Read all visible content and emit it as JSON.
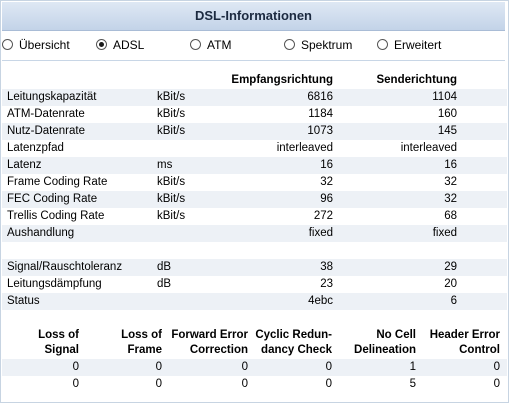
{
  "header": {
    "title": "DSL-Informationen"
  },
  "tabs": [
    {
      "label": "Übersicht",
      "selected": false
    },
    {
      "label": "ADSL",
      "selected": true
    },
    {
      "label": "ATM",
      "selected": false
    },
    {
      "label": "Spektrum",
      "selected": false
    },
    {
      "label": "Erweitert",
      "selected": false
    }
  ],
  "table": {
    "col_rx": "Empfangsrichtung",
    "col_tx": "Senderichtung",
    "rows": [
      {
        "label": "Leitungskapazität",
        "unit": "kBit/s",
        "rx": "6816",
        "tx": "1104"
      },
      {
        "label": "ATM-Datenrate",
        "unit": "kBit/s",
        "rx": "1184",
        "tx": "160"
      },
      {
        "label": "Nutz-Datenrate",
        "unit": "kBit/s",
        "rx": "1073",
        "tx": "145"
      },
      {
        "label": "Latenzpfad",
        "unit": "",
        "rx": "interleaved",
        "tx": "interleaved"
      },
      {
        "label": "Latenz",
        "unit": "ms",
        "rx": "16",
        "tx": "16"
      },
      {
        "label": "Frame Coding Rate",
        "unit": "kBit/s",
        "rx": "32",
        "tx": "32"
      },
      {
        "label": "FEC Coding Rate",
        "unit": "kBit/s",
        "rx": "96",
        "tx": "32"
      },
      {
        "label": "Trellis Coding Rate",
        "unit": "kBit/s",
        "rx": "272",
        "tx": "68"
      },
      {
        "label": "Aushandlung",
        "unit": "",
        "rx": "fixed",
        "tx": "fixed"
      },
      {
        "label": "",
        "unit": "",
        "rx": "",
        "tx": ""
      },
      {
        "label": "Signal/Rauschtoleranz",
        "unit": "dB",
        "rx": "38",
        "tx": "29"
      },
      {
        "label": "Leitungsdämpfung",
        "unit": "dB",
        "rx": "23",
        "tx": "20"
      },
      {
        "label": "Status",
        "unit": "",
        "rx": "4ebc",
        "tx": "6"
      }
    ]
  },
  "errors": {
    "columns": [
      {
        "line1": "Loss of",
        "line2": "Signal"
      },
      {
        "line1": "Loss of",
        "line2": "Frame"
      },
      {
        "line1": "Forward Error",
        "line2": "Correction"
      },
      {
        "line1": "Cyclic Redun-",
        "line2": "dancy Check"
      },
      {
        "line1": "No Cell",
        "line2": "Delineation"
      },
      {
        "line1": "Header Error",
        "line2": "Control"
      }
    ],
    "rows": [
      [
        "0",
        "0",
        "0",
        "0",
        "1",
        "0"
      ],
      [
        "0",
        "0",
        "0",
        "0",
        "5",
        "0"
      ]
    ]
  }
}
